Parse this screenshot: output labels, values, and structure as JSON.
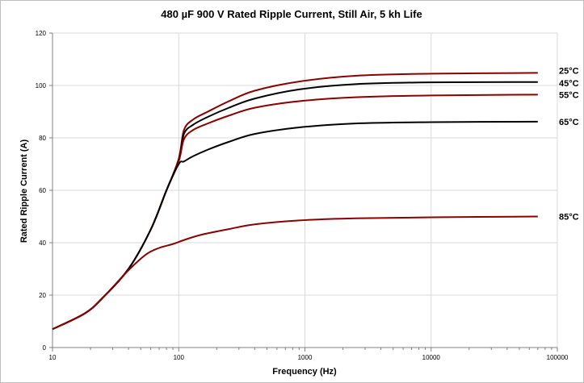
{
  "chart_data": {
    "type": "line",
    "title": "480 µF 900 V Rated Ripple Current, Still Air, 5 kh Life",
    "xlabel": "Frequency (Hz)",
    "ylabel": "Rated Ripple Current (A)",
    "xscale": "log",
    "xlim": [
      10,
      100000
    ],
    "ylim": [
      0,
      120
    ],
    "grid": true,
    "legend": "inline-right",
    "x_ticks": [
      10,
      100,
      1000,
      10000,
      100000
    ],
    "x_tick_labels": [
      "10",
      "100",
      "1000",
      "10000",
      "100000"
    ],
    "y_ticks": [
      0,
      20,
      40,
      60,
      80,
      100,
      120
    ],
    "y_tick_labels": [
      "0",
      "20",
      "40",
      "60",
      "80",
      "100",
      "120"
    ],
    "series": [
      {
        "name": "25°C",
        "color": "#8b0000",
        "x": [
          10,
          18,
          25,
          40,
          60,
          80,
          100,
          110,
          130,
          170,
          250,
          400,
          900,
          2500,
          10000,
          70000
        ],
        "y": [
          7,
          13,
          19,
          30,
          45,
          60,
          72,
          83,
          87,
          90,
          94,
          98,
          101.5,
          103.7,
          104.5,
          104.8
        ]
      },
      {
        "name": "45°C",
        "color": "#000000",
        "x": [
          10,
          18,
          25,
          40,
          60,
          80,
          100,
          110,
          130,
          170,
          250,
          400,
          900,
          2500,
          10000,
          70000
        ],
        "y": [
          7,
          13,
          19,
          30,
          45,
          60,
          71.5,
          81.5,
          85,
          88,
          91.5,
          95,
          98.5,
          100.5,
          101.2,
          101.3
        ]
      },
      {
        "name": "55°C",
        "color": "#8b0000",
        "x": [
          10,
          18,
          25,
          40,
          60,
          80,
          100,
          110,
          130,
          170,
          250,
          400,
          900,
          2500,
          10000,
          70000
        ],
        "y": [
          7,
          13,
          19,
          30,
          45,
          60,
          71,
          79.5,
          83,
          85.5,
          88.5,
          91.5,
          94,
          95.5,
          96.2,
          96.5
        ]
      },
      {
        "name": "65°C",
        "color": "#000000",
        "x": [
          10,
          18,
          25,
          40,
          60,
          80,
          100,
          110,
          130,
          170,
          250,
          400,
          900,
          2500,
          10000,
          70000
        ],
        "y": [
          7,
          13,
          19,
          30,
          45,
          60,
          70,
          71,
          73,
          75.5,
          78.5,
          81.5,
          84,
          85.5,
          86,
          86.2
        ]
      },
      {
        "name": "85°C",
        "color": "#8b0000",
        "x": [
          10,
          18,
          25,
          40,
          55,
          70,
          90,
          110,
          150,
          250,
          400,
          900,
          2500,
          10000,
          70000
        ],
        "y": [
          7,
          13,
          19,
          29.5,
          35.5,
          38,
          39.5,
          41,
          43,
          45.2,
          47,
          48.5,
          49.3,
          49.7,
          50
        ]
      }
    ]
  }
}
